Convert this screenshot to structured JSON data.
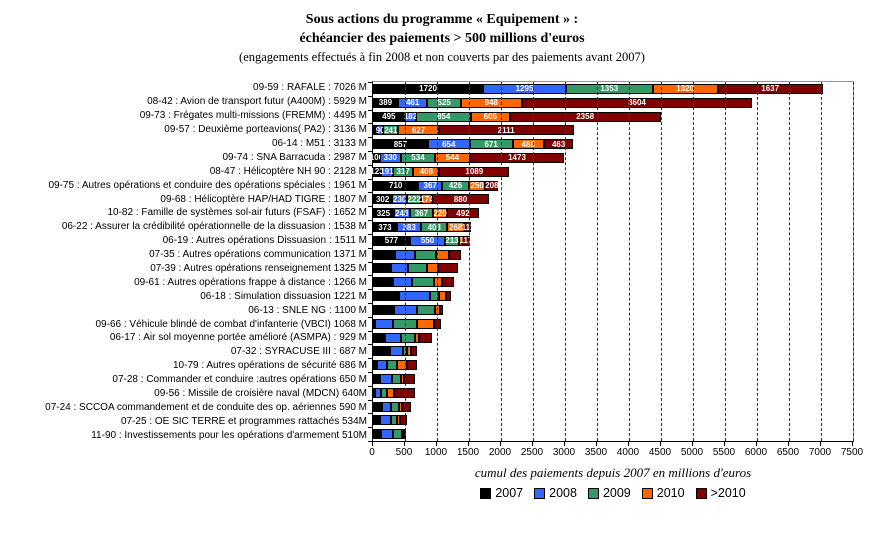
{
  "title": {
    "line1": "Sous actions du programme « Equipement » :",
    "line2": "échéancier des paiements > 500 millions d'euros",
    "line3": "(engagements effectués à fin 2008 et non couverts par des paiements avant 2007)"
  },
  "chart_data": {
    "type": "bar",
    "orientation": "horizontal",
    "stacked": true,
    "xlabel": "cumul des paiements depuis 2007 en millions d'euros",
    "xlim": [
      0,
      7500
    ],
    "x_ticks": [
      0,
      500,
      1000,
      1500,
      2000,
      2500,
      3000,
      3500,
      4000,
      4500,
      5000,
      5500,
      6000,
      6500,
      7000,
      7500
    ],
    "grid": "vertical-dashed",
    "legend_position": "bottom",
    "legend": [
      {
        "label": "2007",
        "color": "#000000"
      },
      {
        "label": "2008",
        "color": "#3366FF"
      },
      {
        "label": "2009",
        "color": "#339966"
      },
      {
        "label": "2010",
        "color": "#FF6600"
      },
      {
        "label": ">2010",
        "color": "#800000"
      }
    ],
    "rows": [
      {
        "label": "09-59 : RAFALE : 7026 M",
        "total": 7026,
        "values": [
          1720,
          1295,
          1353,
          1020,
          1637
        ],
        "labels": [
          "1720",
          "1295",
          "1353",
          "1020",
          "1637"
        ]
      },
      {
        "label": "08-42 : Avion de transport futur (A400M) : 5929 M",
        "total": 5929,
        "values": [
          389,
          461,
          525,
          948,
          3604
        ],
        "labels": [
          "389",
          "461",
          "525",
          "948",
          "3604"
        ]
      },
      {
        "label": "09-73 : Frégates multi-missions (FREMM) : 4495 M",
        "total": 4495,
        "values": [
          495,
          182,
          854,
          605,
          2358
        ],
        "labels": [
          "495",
          "182",
          "854",
          "605",
          "2358"
        ]
      },
      {
        "label": "09-57 : Deuxième porteavions( PA2) : 3136 M",
        "total": 3136,
        "values": [
          67,
          90,
          241,
          627,
          2111
        ],
        "labels": [
          "",
          "90",
          "241",
          "627",
          "2111"
        ]
      },
      {
        "label": "06-14 : M51 : 3133 M",
        "total": 3133,
        "values": [
          857,
          654,
          671,
          488,
          463
        ],
        "labels": [
          "857",
          "654",
          "671",
          "488",
          "463"
        ]
      },
      {
        "label": "09-74 : SNA Barracuda : 2987 M",
        "total": 2987,
        "values": [
          106,
          330,
          534,
          544,
          1473
        ],
        "labels": [
          "106",
          "330",
          "534",
          "544",
          "1473"
        ]
      },
      {
        "label": "08-47 : Hélicoptère NH 90 : 2128 M",
        "total": 2128,
        "values": [
          123,
          191,
          317,
          408,
          1089
        ],
        "labels": [
          "123",
          "191",
          "317",
          "408",
          "1089"
        ]
      },
      {
        "label": "09-75 : Autres opérations et conduire des opérations spéciales : 1961 M",
        "total": 1961,
        "values": [
          710,
          367,
          426,
          250,
          208
        ],
        "labels": [
          "710",
          "367",
          "426",
          "250",
          "208"
        ]
      },
      {
        "label": "09-68 : Hélicoptère HAP/HAD TIGRE : 1807 M",
        "total": 1807,
        "values": [
          302,
          230,
          222,
          174,
          880
        ],
        "labels": [
          "302",
          "230",
          "222",
          "174",
          "880"
        ]
      },
      {
        "label": "10-82 : Famille de systèmes sol-air futurs (FSAF) : 1652 M",
        "total": 1652,
        "values": [
          325,
          248,
          367,
          220,
          492
        ],
        "labels": [
          "325",
          "248",
          "367",
          "220",
          "492"
        ]
      },
      {
        "label": "06-22 : Assurer la crédibilité opérationnelle de la dissuasion : 1538 M",
        "total": 1538,
        "values": [
          373,
          383,
          403,
          268,
          111
        ],
        "labels": [
          "373",
          "383",
          "403",
          "268",
          "111"
        ]
      },
      {
        "label": "06-19 : Autres opérations Dissuasion : 1511 M",
        "total": 1511,
        "values": [
          577,
          550,
          213,
          54,
          117
        ],
        "labels": [
          "577",
          "550",
          "213",
          "",
          "117"
        ]
      },
      {
        "label": "07-35 : Autres opérations communication 1371 M",
        "total": 1371,
        "values": [
          350,
          300,
          335,
          210,
          176
        ],
        "labels": [
          "",
          "",
          "",
          "",
          ""
        ]
      },
      {
        "label": "07-39 : Autres opérations renseignement 1325 M",
        "total": 1325,
        "values": [
          285,
          255,
          305,
          175,
          305
        ],
        "labels": [
          "",
          "",
          "",
          "",
          ""
        ]
      },
      {
        "label": "09-61 : Autres opérations frappe à distance : 1266 M",
        "total": 1266,
        "values": [
          320,
          290,
          340,
          130,
          186
        ],
        "labels": [
          "",
          "",
          "",
          "",
          ""
        ]
      },
      {
        "label": "06-18 :  Simulation dissuasion 1221 M",
        "total": 1221,
        "values": [
          410,
          480,
          135,
          115,
          81
        ],
        "labels": [
          "",
          "",
          "",
          "",
          ""
        ]
      },
      {
        "label": "06-13 : SNLE NG : 1100 M",
        "total": 1100,
        "values": [
          325,
          355,
          295,
          78,
          47
        ],
        "labels": [
          "",
          "",
          "",
          "",
          ""
        ]
      },
      {
        "label": "09-66 : Véhicule blindé de combat d'infanterie (VBCI) 1068 M",
        "total": 1068,
        "values": [
          32,
          287,
          366,
          271,
          112
        ],
        "labels": [
          "",
          "",
          "",
          "",
          ""
        ]
      },
      {
        "label": "06-17 : Air sol moyenne portée amélioré (ASMPA) : 929 M",
        "total": 929,
        "values": [
          192,
          240,
          224,
          65,
          208
        ],
        "labels": [
          "",
          "",
          "",
          "",
          ""
        ]
      },
      {
        "label": "07-32 : SYRACUSE III : 687 M",
        "total": 687,
        "values": [
          260,
          212,
          66,
          50,
          99
        ],
        "labels": [
          "",
          "",
          "",
          "",
          ""
        ]
      },
      {
        "label": "10-79 : Autres opérations de sécurité 686 M",
        "total": 686,
        "values": [
          63,
          156,
          156,
          156,
          155
        ],
        "labels": [
          "",
          "",
          "",
          "",
          ""
        ]
      },
      {
        "label": "07-28 :  Commander et conduire :autres opérations 650 M",
        "total": 650,
        "values": [
          115,
          180,
          146,
          48,
          161
        ],
        "labels": [
          "",
          "",
          "",
          "",
          ""
        ]
      },
      {
        "label": "09-56 : Missile de croisière naval (MDCN) 640M",
        "total": 640,
        "values": [
          20,
          95,
          95,
          110,
          320
        ],
        "labels": [
          "",
          "",
          "",
          "",
          ""
        ]
      },
      {
        "label": "07-24 :  SCCOA commandement et de conduite des op. aériennes 590 M",
        "total": 590,
        "values": [
          143,
          133,
          133,
          48,
          133
        ],
        "labels": [
          "",
          "",
          "",
          "",
          ""
        ]
      },
      {
        "label": "07-25 :  OE SIC TERRE et programmes rattachés 534M",
        "total": 534,
        "values": [
          114,
          161,
          97,
          48,
          114
        ],
        "labels": [
          "",
          "",
          "",
          "",
          ""
        ]
      },
      {
        "label": "11-90 : Investissements pour les opérations d'armement 510M",
        "total": 510,
        "values": [
          130,
          190,
          140,
          30,
          20
        ],
        "labels": [
          "",
          "",
          "",
          "",
          ""
        ]
      }
    ]
  }
}
